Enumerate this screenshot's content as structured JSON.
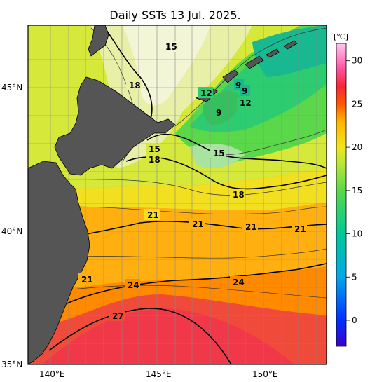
{
  "title": "Daily SSTs 13 Jul. 2025.",
  "colorbar": {
    "unit": "[℃]",
    "min": -3,
    "max": 32,
    "ticks": [
      "30",
      "25",
      "20",
      "15",
      "10",
      "5",
      "0"
    ],
    "stops": [
      {
        "v": -3,
        "c": "#3b00c8"
      },
      {
        "v": 0,
        "c": "#0030ff"
      },
      {
        "v": 5,
        "c": "#00a8e8"
      },
      {
        "v": 10,
        "c": "#00c89a"
      },
      {
        "v": 15,
        "c": "#5ad84a"
      },
      {
        "v": 18,
        "c": "#b6e63a"
      },
      {
        "v": 20,
        "c": "#f0e61c"
      },
      {
        "v": 23,
        "c": "#ffb400"
      },
      {
        "v": 25,
        "c": "#ff5a00"
      },
      {
        "v": 27,
        "c": "#f52830"
      },
      {
        "v": 29,
        "c": "#ff50a0"
      },
      {
        "v": 32,
        "c": "#ffc8f0"
      }
    ]
  },
  "map": {
    "lon_range": [
      139,
      153
    ],
    "lat_range": [
      35,
      47
    ],
    "lon_labels": [
      "140°E",
      "145°E",
      "150°E"
    ],
    "lat_labels": [
      "45°N",
      "40°N",
      "35°N"
    ],
    "land_color": "#555555"
  },
  "contour_labels": [
    "15",
    "18",
    "12",
    "9",
    "9",
    "12",
    "9",
    "15",
    "18",
    "15",
    "18",
    "21",
    "21",
    "21",
    "21",
    "21",
    "24",
    "24",
    "27"
  ]
}
